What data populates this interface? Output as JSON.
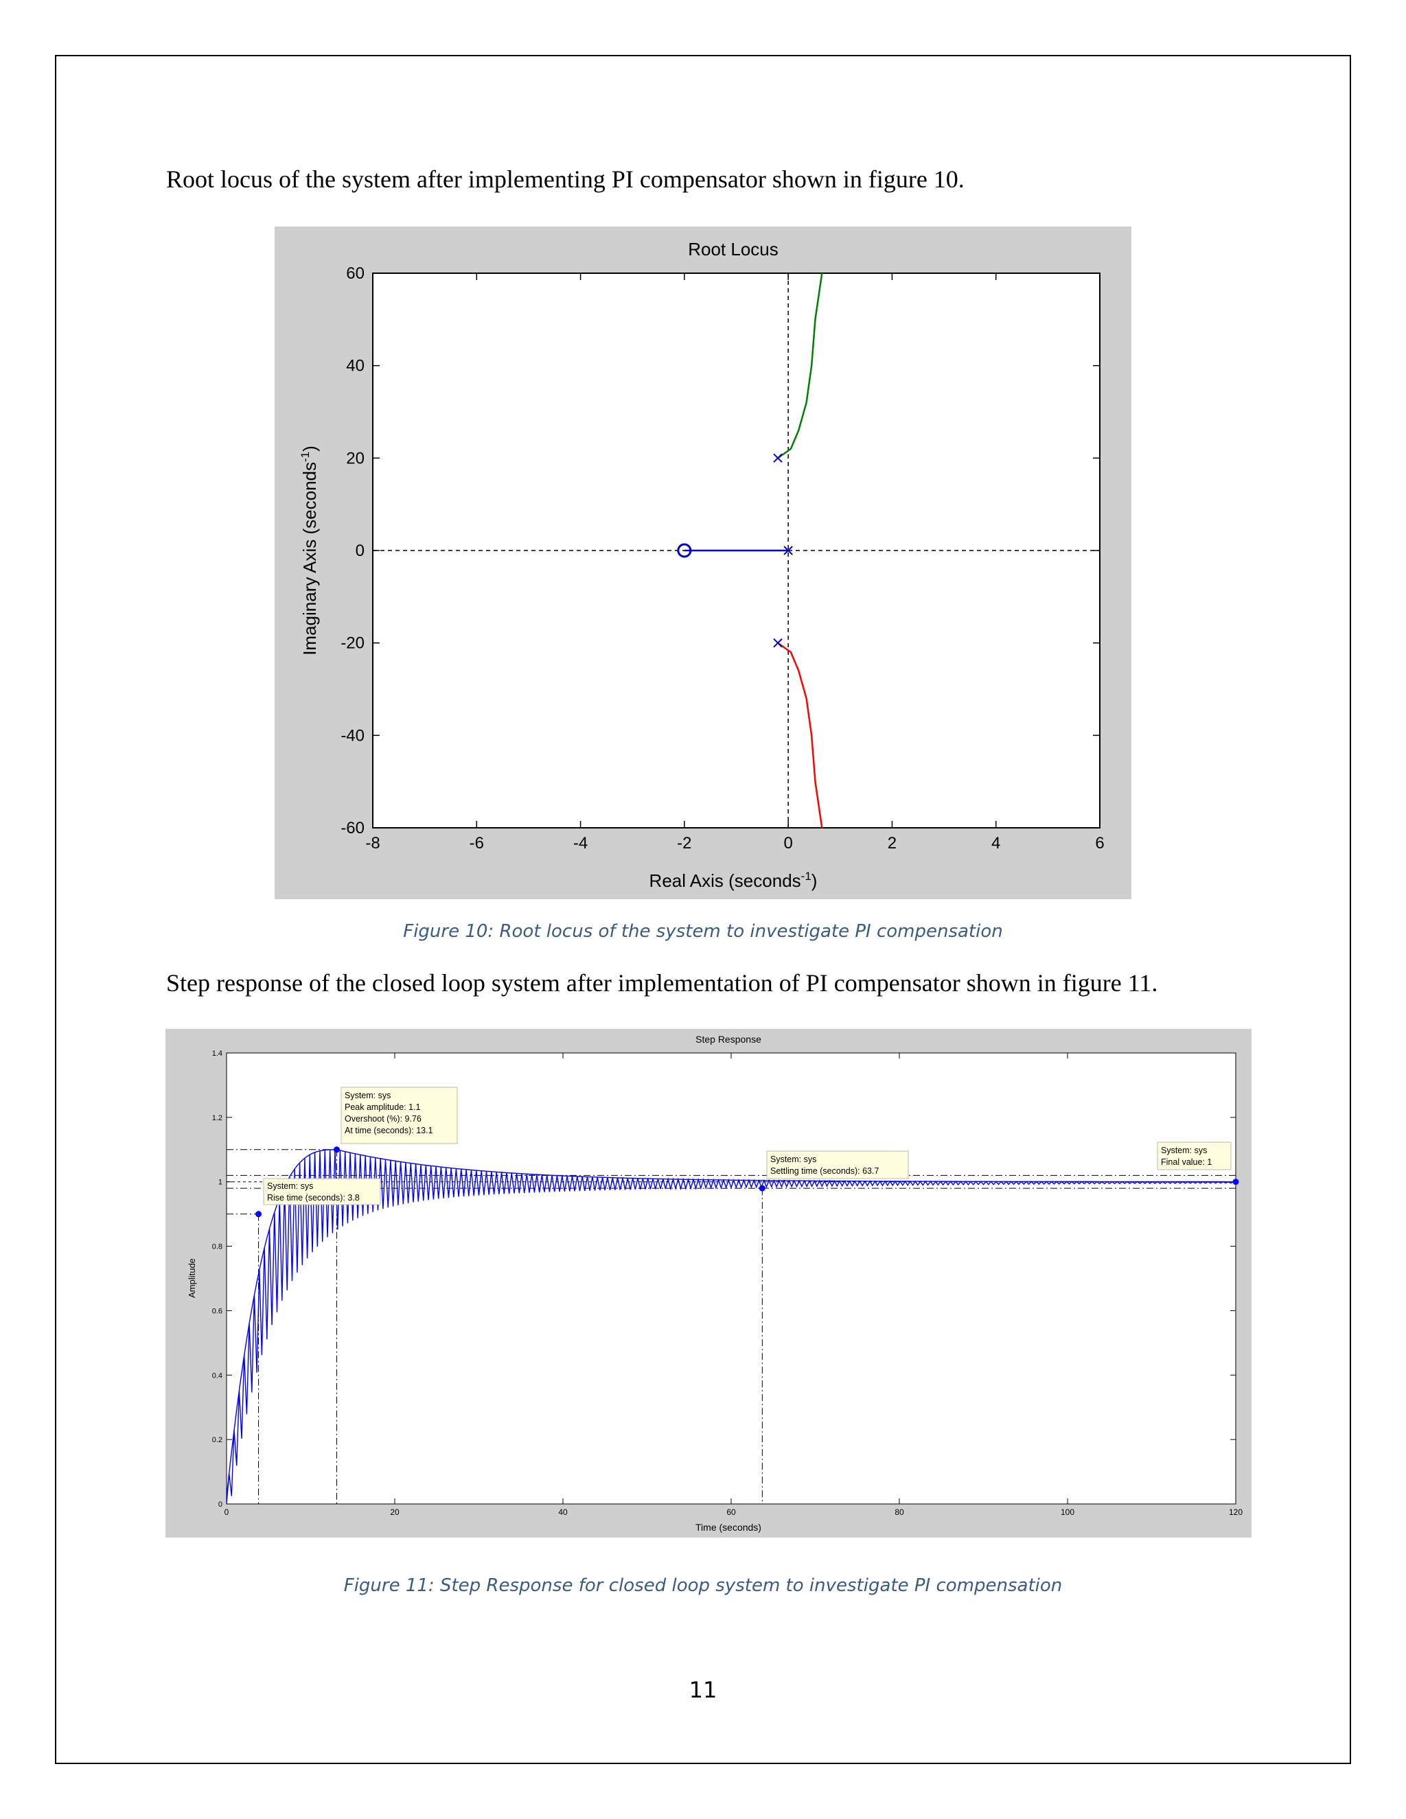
{
  "document": {
    "intro_root_locus": "Root locus of the system after implementing PI compensator shown in figure 10.",
    "caption_fig10": "Figure 10: Root locus of the system to investigate PI compensation",
    "intro_step_response": "Step response of the closed loop system after implementation of PI compensator shown in figure 11.",
    "caption_fig11": "Figure 11: Step Response for closed loop system to investigate PI compensation",
    "page_number": "11"
  },
  "chart_data": [
    {
      "type": "line",
      "title": "Root Locus",
      "xlabel": "Real Axis (seconds",
      "xlabel_exp": "-1",
      "xlabel_tail": ")",
      "ylabel": "Imaginary Axis (seconds",
      "ylabel_exp": "-1",
      "ylabel_tail": ")",
      "xlim": [
        -8,
        6
      ],
      "ylim": [
        -60,
        60
      ],
      "xticks": [
        -8,
        -6,
        -4,
        -2,
        0,
        2,
        4,
        6
      ],
      "yticks": [
        -60,
        -40,
        -20,
        0,
        20,
        40,
        60
      ],
      "poles": [
        [
          -0.2,
          20
        ],
        [
          -0.2,
          -20
        ],
        [
          0,
          0
        ]
      ],
      "zeros": [
        [
          -2,
          0
        ]
      ],
      "branches": [
        {
          "color": "#0000ff",
          "points": [
            [
              0,
              0
            ],
            [
              -2,
              0
            ]
          ]
        },
        {
          "color": "#008000",
          "points": [
            [
              -0.2,
              20
            ],
            [
              0.05,
              22
            ],
            [
              0.2,
              26
            ],
            [
              0.35,
              32
            ],
            [
              0.45,
              40
            ],
            [
              0.52,
              50
            ],
            [
              0.65,
              60
            ]
          ]
        },
        {
          "color": "#ff0000",
          "points": [
            [
              -0.2,
              -20
            ],
            [
              0.05,
              -22
            ],
            [
              0.2,
              -26
            ],
            [
              0.35,
              -32
            ],
            [
              0.45,
              -40
            ],
            [
              0.52,
              -50
            ],
            [
              0.65,
              -60
            ]
          ]
        }
      ],
      "colors": {
        "background": "#cfcfcf",
        "plot": "#ffffff",
        "marker": "#0000cc"
      }
    },
    {
      "type": "line",
      "title": "Step Response",
      "xlabel": "Time (seconds)",
      "ylabel": "Amplitude",
      "xlim": [
        0,
        120
      ],
      "ylim": [
        0,
        1.4
      ],
      "xticks": [
        0,
        20,
        40,
        60,
        80,
        100,
        120
      ],
      "yticks": [
        0,
        0.2,
        0.4,
        0.6,
        0.8,
        1,
        1.2,
        1.4
      ],
      "yticklabels": [
        "0",
        "0.2",
        "0.4",
        "0.6",
        "0.8",
        "1",
        "1.2",
        "1.4"
      ],
      "final_value": 1,
      "peak_amplitude": 1.1,
      "peak_time": 13.1,
      "rise_time": 3.8,
      "settling_time": 63.7,
      "settling_band": [
        0.98,
        1.02
      ],
      "oscillation_period": 0.6,
      "colors": {
        "line": "#0000ff",
        "background": "#cfcfcf",
        "plot": "#ffffff"
      },
      "datatips": {
        "peak": {
          "line1": "System: sys",
          "line2": "Peak amplitude: 1.1",
          "line3": "Overshoot (%): 9.76",
          "line4": "At time (seconds): 13.1"
        },
        "rise": {
          "line1": "System: sys",
          "line2": "Rise time (seconds): 3.8"
        },
        "settling": {
          "line1": "System: sys",
          "line2": "Settling time (seconds): 63.7"
        },
        "final": {
          "line1": "System: sys",
          "line2": "Final value: 1"
        }
      }
    }
  ]
}
